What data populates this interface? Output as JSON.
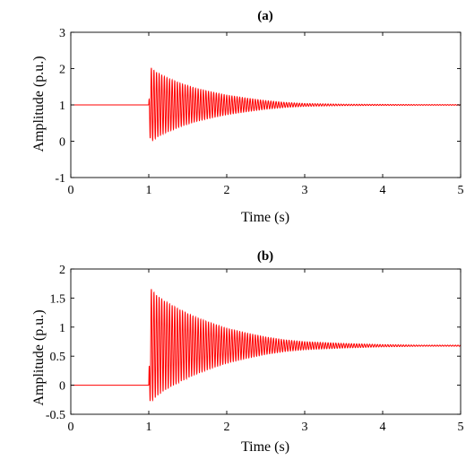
{
  "chart_data": [
    {
      "type": "line",
      "title": "(a)",
      "xlabel": "Time (s)",
      "ylabel": "Amplitude (p.u.)",
      "xlim": [
        0,
        5
      ],
      "ylim": [
        -1,
        3
      ],
      "xticks": [
        0,
        1,
        2,
        3,
        4,
        5
      ],
      "yticks": [
        -1,
        0,
        1,
        2,
        3
      ],
      "grid": false,
      "line_color": "#ff0000",
      "series": [
        {
          "x": [
            0,
            1.0,
            1.02,
            1.05,
            1.1,
            1.2,
            1.4,
            1.6,
            1.8,
            2.0,
            2.25,
            2.5,
            2.75,
            3.0,
            3.5,
            4.0,
            4.5,
            5.0
          ],
          "steady": 1.0,
          "upper": [
            1.0,
            1.0,
            2.05,
            1.98,
            1.9,
            1.78,
            1.6,
            1.46,
            1.36,
            1.27,
            1.19,
            1.12,
            1.07,
            1.04,
            1.02,
            1.015,
            1.01,
            1.01
          ],
          "lower": [
            1.0,
            1.0,
            -0.05,
            0.02,
            0.1,
            0.22,
            0.4,
            0.54,
            0.64,
            0.73,
            0.81,
            0.88,
            0.93,
            0.96,
            0.98,
            0.985,
            0.99,
            0.99
          ]
        }
      ]
    },
    {
      "type": "line",
      "title": "(b)",
      "xlabel": "Time (s)",
      "ylabel": "Amplitude (p.u.)",
      "xlim": [
        0,
        5
      ],
      "ylim": [
        -0.5,
        2
      ],
      "xticks": [
        0,
        1,
        2,
        3,
        4,
        5
      ],
      "yticks": [
        -0.5,
        0,
        0.5,
        1,
        1.5,
        2
      ],
      "grid": false,
      "line_color": "#ff0000",
      "series": [
        {
          "x": [
            0,
            1.0,
            1.02,
            1.05,
            1.1,
            1.2,
            1.4,
            1.6,
            1.8,
            2.0,
            2.25,
            2.5,
            2.75,
            3.0,
            3.5,
            4.0,
            4.5,
            5.0
          ],
          "initial": 0.0,
          "steady": 0.68,
          "upper": [
            0.0,
            0.0,
            1.68,
            1.62,
            1.55,
            1.45,
            1.3,
            1.17,
            1.07,
            0.98,
            0.9,
            0.83,
            0.78,
            0.75,
            0.72,
            0.7,
            0.69,
            0.69
          ],
          "lower": [
            0.0,
            0.0,
            -0.32,
            -0.26,
            -0.19,
            -0.09,
            0.06,
            0.19,
            0.29,
            0.38,
            0.46,
            0.53,
            0.58,
            0.61,
            0.64,
            0.66,
            0.67,
            0.67
          ]
        }
      ]
    }
  ]
}
